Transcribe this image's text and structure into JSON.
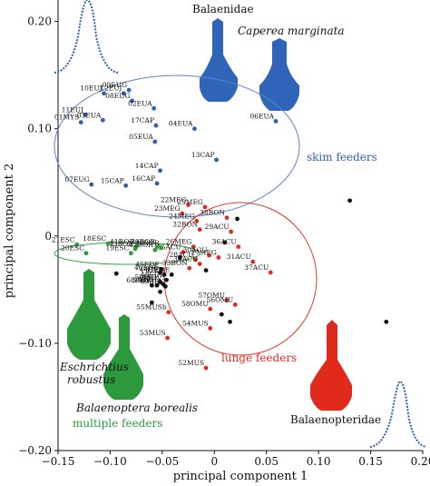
{
  "chart_data": {
    "type": "scatter",
    "xlabel": "principal component 1",
    "ylabel": "principal component 2",
    "xlim": [
      -0.15,
      0.2
    ],
    "ylim": [
      -0.2,
      0.22
    ],
    "xticks": [
      -0.15,
      -0.1,
      -0.05,
      0,
      0.05,
      0.1,
      0.15,
      0.2
    ],
    "yticks": [
      -0.2,
      -0.1,
      0,
      0.1,
      0.2
    ],
    "xtick_labels": [
      "−0.15",
      "−0.10",
      "−0.05",
      "0",
      "0.05",
      "0.10",
      "0.15",
      "0.20"
    ],
    "ytick_labels": [
      "−0.20",
      "−0.10",
      "0",
      "0.10",
      "0.20"
    ],
    "grid": false,
    "colors": {
      "skim": "#2e5fb0",
      "lunge": "#e12b20",
      "multiple": "#2e9a3c",
      "other": "#111111",
      "skim_ellipse": "#5a86c8",
      "lunge_circle": "#e23b2e",
      "multiple_ellipse": "#3aa04a"
    },
    "series": [
      {
        "name": "skim feeders",
        "color": "#2e5fb0",
        "points": [
          {
            "label": "09EUG",
            "x": -0.082,
            "y": 0.136
          },
          {
            "label": "12EUJ",
            "x": -0.087,
            "y": 0.133
          },
          {
            "label": "08EUG",
            "x": -0.079,
            "y": 0.126
          },
          {
            "label": "10EUJ",
            "x": -0.106,
            "y": 0.133
          },
          {
            "label": "02EUA",
            "x": -0.058,
            "y": 0.119
          },
          {
            "label": "11EUJ",
            "x": -0.124,
            "y": 0.113
          },
          {
            "label": "01MYS",
            "x": -0.128,
            "y": 0.106
          },
          {
            "label": "03EUA",
            "x": -0.107,
            "y": 0.108
          },
          {
            "label": "17CAP",
            "x": -0.056,
            "y": 0.103
          },
          {
            "label": "04EUA",
            "x": -0.019,
            "y": 0.1
          },
          {
            "label": "06EUA",
            "x": 0.059,
            "y": 0.107
          },
          {
            "label": "05EUA",
            "x": -0.057,
            "y": 0.088
          },
          {
            "label": "13CAP",
            "x": 0.002,
            "y": 0.071
          },
          {
            "label": "14CAP",
            "x": -0.052,
            "y": 0.061
          },
          {
            "label": "16CAP",
            "x": -0.055,
            "y": 0.049
          },
          {
            "label": "07EUG",
            "x": -0.118,
            "y": 0.048
          },
          {
            "label": "15CAP",
            "x": -0.085,
            "y": 0.047
          }
        ]
      },
      {
        "name": "lunge feeders",
        "color": "#e12b20",
        "points": [
          {
            "label": "22MEG",
            "x": -0.025,
            "y": 0.029
          },
          {
            "label": "25MEG",
            "x": -0.009,
            "y": 0.027
          },
          {
            "label": "23MEG",
            "x": -0.031,
            "y": 0.021
          },
          {
            "label": "24MEG",
            "x": -0.017,
            "y": 0.014
          },
          {
            "label": "38BON",
            "x": 0.012,
            "y": 0.017
          },
          {
            "label": "32BON",
            "x": -0.014,
            "y": 0.006
          },
          {
            "label": "29ACU",
            "x": 0.016,
            "y": 0.004
          },
          {
            "label": "36ACU",
            "x": 0.023,
            "y": -0.01
          },
          {
            "label": "31ACU",
            "x": 0.037,
            "y": -0.024
          },
          {
            "label": "37ACU",
            "x": 0.054,
            "y": -0.034
          },
          {
            "label": "35ACU",
            "x": -0.03,
            "y": -0.015
          },
          {
            "label": "26MEG",
            "x": -0.02,
            "y": -0.01
          },
          {
            "label": "30ACU",
            "x": -0.005,
            "y": -0.018
          },
          {
            "label": "27MEG",
            "x": 0.004,
            "y": -0.02
          },
          {
            "label": "28ACU",
            "x": -0.018,
            "y": -0.022
          },
          {
            "label": "34ACU",
            "x": -0.014,
            "y": -0.026
          },
          {
            "label": "33BON",
            "x": -0.024,
            "y": -0.03
          },
          {
            "label": "57OMU",
            "x": 0.012,
            "y": -0.06
          },
          {
            "label": "56OMU",
            "x": 0.02,
            "y": -0.064
          },
          {
            "label": "58OMU",
            "x": -0.004,
            "y": -0.068
          },
          {
            "label": "55MUSb",
            "x": -0.044,
            "y": -0.071
          },
          {
            "label": "54MUS",
            "x": -0.004,
            "y": -0.086
          },
          {
            "label": "53MUS",
            "x": -0.045,
            "y": -0.095
          },
          {
            "label": "52MUS",
            "x": -0.008,
            "y": -0.123
          }
        ]
      },
      {
        "name": "multiple feeders",
        "color": "#2e9a3c",
        "points": [
          {
            "label": "41BOR",
            "x": -0.075,
            "y": -0.01
          },
          {
            "label": "40BOR",
            "x": -0.051,
            "y": -0.011
          },
          {
            "label": "43BOR",
            "x": -0.076,
            "y": -0.012
          },
          {
            "label": "18ESC",
            "x": -0.102,
            "y": -0.007
          },
          {
            "label": "21ESC",
            "x": -0.132,
            "y": -0.008
          },
          {
            "label": "20ESC",
            "x": -0.123,
            "y": -0.016
          },
          {
            "label": "19ESC",
            "x": -0.08,
            "y": -0.016
          },
          {
            "label": "42BOR",
            "x": -0.057,
            "y": -0.013
          },
          {
            "label": "39BOR",
            "x": -0.055,
            "y": -0.01
          }
        ]
      },
      {
        "name": "other specimens",
        "color": "#111111",
        "points": [
          {
            "label": "44BRY",
            "x": -0.048,
            "y": -0.036
          },
          {
            "label": "45EDE",
            "x": -0.051,
            "y": -0.031
          },
          {
            "label": "46EDE",
            "x": -0.052,
            "y": -0.034
          },
          {
            "label": "47EDE",
            "x": -0.041,
            "y": -0.036
          },
          {
            "label": "48EDE",
            "x": -0.046,
            "y": -0.041
          },
          {
            "label": "49PHY",
            "x": -0.049,
            "y": -0.045
          },
          {
            "label": "50PHY",
            "x": -0.052,
            "y": -0.043
          },
          {
            "label": "51BRY",
            "x": -0.055,
            "y": -0.046
          },
          {
            "label": "60PHY",
            "x": -0.06,
            "y": -0.046
          },
          {
            "label": "59BRY",
            "x": -0.047,
            "y": -0.047
          },
          {
            "label": "",
            "x": 0.13,
            "y": 0.033
          },
          {
            "label": "",
            "x": 0.165,
            "y": -0.08
          },
          {
            "label": "",
            "x": -0.094,
            "y": -0.035
          },
          {
            "label": "",
            "x": -0.06,
            "y": -0.062
          },
          {
            "label": "",
            "x": -0.052,
            "y": -0.052
          },
          {
            "label": "",
            "x": -0.033,
            "y": -0.02
          },
          {
            "label": "",
            "x": 0.022,
            "y": 0.016
          },
          {
            "label": "",
            "x": 0.01,
            "y": -0.006
          },
          {
            "label": "",
            "x": -0.008,
            "y": -0.032
          },
          {
            "label": "",
            "x": 0.007,
            "y": -0.073
          },
          {
            "label": "",
            "x": 0.015,
            "y": -0.08
          }
        ]
      }
    ],
    "annotations": {
      "balaenidae": "Balaenidae",
      "caperea": "Caperea marginata",
      "skim": "skim feeders",
      "lunge": "lunge feeders",
      "eschrichtius_1": "Eschrichtius",
      "eschrichtius_2": "robustus",
      "borealis": "Balaenoptera borealis",
      "multiple": "multiple feeders",
      "balaenopteridae": "Balaenopteridae"
    }
  }
}
